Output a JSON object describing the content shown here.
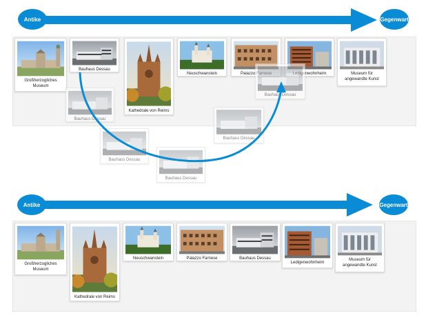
{
  "colors": {
    "accent": "#0a8bd6",
    "strip_bg": "#f3f3f3"
  },
  "timeline_top": {
    "start_label": "Antike",
    "end_label": "Gegenwart"
  },
  "timeline_bottom": {
    "start_label": "Antike",
    "end_label": "Gegenwart"
  },
  "top_row": {
    "museum": "Großherzogliches Museum",
    "bauhaus": "Bauhaus Dessau",
    "kathedrale": "Kathedrale von Reims",
    "neuschwanstein": "Neuschwanstein",
    "farnese": "Palazzo Farnese",
    "ledigen": "Ledigenwohnheim",
    "kunst": "Museum für angewandte Kunst"
  },
  "drag_trail": {
    "ghost_1": "Bauhaus Dessau",
    "ghost_2": "Bauhaus Dessau",
    "ghost_3": "Bauhaus Dessau",
    "ghost_4": "Bauhaus Dessau",
    "ghost_5": "Bauhaus Dessau"
  },
  "bottom_row": {
    "museum": "Großherzogliches Museum",
    "kathedrale": "Kathedrale von Reims",
    "neuschwanstein": "Neuschwanstein",
    "farnese": "Palazzo Farnese",
    "bauhaus": "Bauhaus Dessau",
    "ledigen": "Ledigenwohnheim",
    "kunst": "Museum für angewandte Kunst"
  }
}
